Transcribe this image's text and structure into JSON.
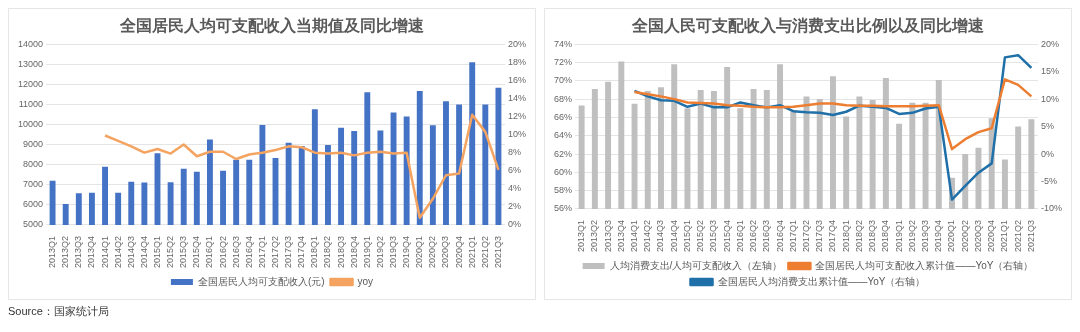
{
  "chart_data": [
    {
      "type": "bar",
      "title": "全国居民人均可支配收入当期值及同比增速",
      "categories": [
        "2013Q1",
        "2013Q2",
        "2013Q3",
        "2013Q4",
        "2014Q1",
        "2014Q2",
        "2014Q3",
        "2014Q4",
        "2015Q1",
        "2015Q2",
        "2015Q3",
        "2015Q4",
        "2016Q1",
        "2016Q2",
        "2016Q3",
        "2016Q4",
        "2017Q1",
        "2017Q2",
        "2017Q3",
        "2017Q4",
        "2018Q1",
        "2018Q2",
        "2018Q3",
        "2018Q4",
        "2019Q1",
        "2019Q2",
        "2019Q3",
        "2019Q4",
        "2020Q1",
        "2020Q2",
        "2020Q3",
        "2020Q4",
        "2021Q1",
        "2021Q2",
        "2021Q3"
      ],
      "series": [
        {
          "name": "全国居民人均可支配收入(元)",
          "color": "#4472c4",
          "values": [
            7200,
            6050,
            6580,
            6600,
            7900,
            6600,
            7150,
            7120,
            8570,
            7130,
            7800,
            7650,
            9250,
            7700,
            8250,
            8250,
            9980,
            8330,
            9090,
            8930,
            10760,
            8980,
            9840,
            9680,
            11610,
            9700,
            10600,
            10400,
            11670,
            9970,
            11160,
            11000,
            13100,
            11000,
            11830
          ]
        },
        {
          "name": "yoy",
          "type": "line",
          "axis": "y2",
          "color": "#f4a460",
          "values": [
            null,
            null,
            null,
            null,
            9.9,
            9.3,
            8.7,
            8.0,
            8.4,
            7.9,
            8.9,
            7.6,
            8.1,
            8.1,
            7.3,
            7.8,
            8.0,
            8.3,
            8.7,
            8.6,
            8.0,
            7.9,
            8.0,
            7.7,
            8.0,
            8.1,
            7.9,
            8.0,
            0.8,
            2.9,
            5.5,
            5.7,
            12.2,
            10.3,
            6.1
          ]
        }
      ],
      "ylim": [
        5000,
        14000
      ],
      "yticks": [
        5000,
        6000,
        7000,
        8000,
        9000,
        10000,
        11000,
        12000,
        13000,
        14000
      ],
      "y2lim": [
        0,
        20
      ],
      "y2ticks": [
        {
          "value": 0,
          "label": "0%"
        },
        {
          "value": 2,
          "label": "2%"
        },
        {
          "value": 4,
          "label": "4%"
        },
        {
          "value": 6,
          "label": "6%"
        },
        {
          "value": 8,
          "label": "8%"
        },
        {
          "value": 10,
          "label": "10%"
        },
        {
          "value": 12,
          "label": "12%"
        },
        {
          "value": 14,
          "label": "14%"
        },
        {
          "value": 16,
          "label": "16%"
        },
        {
          "value": 18,
          "label": "18%"
        },
        {
          "value": 20,
          "label": "20%"
        }
      ],
      "grid": "y",
      "legend": "bottom",
      "marker": "none",
      "annotations": [
        "Source：国家统计局"
      ]
    },
    {
      "type": "bar",
      "title": "全国人民可支配收入与消费支出比例以及同比增速",
      "categories": [
        "2013Q1",
        "2013Q2",
        "2013Q3",
        "2013Q4",
        "2014Q1",
        "2014Q2",
        "2014Q3",
        "2014Q4",
        "2015Q1",
        "2015Q2",
        "2015Q3",
        "2015Q4",
        "2016Q1",
        "2016Q2",
        "2016Q3",
        "2016Q4",
        "2017Q1",
        "2017Q2",
        "2017Q3",
        "2017Q4",
        "2018Q1",
        "2018Q2",
        "2018Q3",
        "2018Q4",
        "2019Q1",
        "2019Q2",
        "2019Q3",
        "2019Q4",
        "2020Q1",
        "2020Q2",
        "2020Q3",
        "2020Q4",
        "2021Q1",
        "2021Q2",
        "2021Q3"
      ],
      "series": [
        {
          "name": "人均消费支出/人均可支配收入（左轴）",
          "color": "#bfbfbf",
          "values": [
            67.3,
            69.1,
            69.9,
            72.1,
            67.5,
            68.9,
            69.3,
            71.8,
            67.0,
            69.0,
            68.9,
            71.5,
            67.0,
            69.1,
            69.0,
            71.8,
            66.8,
            68.3,
            68.0,
            70.5,
            66.1,
            68.3,
            67.9,
            70.3,
            65.3,
            67.6,
            67.6,
            70.1,
            59.4,
            62.0,
            62.7,
            65.9,
            61.4,
            65.0,
            65.8
          ]
        },
        {
          "name": "全国居民人均可支配收入累计值——YoY（右轴）",
          "type": "line",
          "axis": "y2",
          "color": "#ed7d31",
          "values": [
            null,
            null,
            null,
            null,
            11.3,
            10.9,
            10.5,
            10.0,
            9.4,
            9.3,
            9.2,
            8.9,
            8.8,
            8.6,
            8.5,
            8.5,
            8.6,
            8.9,
            9.2,
            9.2,
            8.9,
            8.8,
            8.8,
            8.7,
            8.7,
            8.7,
            8.8,
            8.9,
            0.9,
            2.7,
            4.0,
            4.7,
            13.6,
            12.6,
            10.5
          ]
        },
        {
          "name": "全国居民人均消费支出累计值——YoY（右轴）",
          "type": "line",
          "axis": "y2",
          "color": "#1f6fa8",
          "values": [
            null,
            null,
            null,
            null,
            11.5,
            10.5,
            9.8,
            9.7,
            8.6,
            9.2,
            8.5,
            8.5,
            9.4,
            8.9,
            8.5,
            8.9,
            7.8,
            7.6,
            7.5,
            7.1,
            7.7,
            8.8,
            8.6,
            8.4,
            7.3,
            7.5,
            8.3,
            8.6,
            -8.3,
            -5.8,
            -3.4,
            -1.7,
            17.6,
            18.0,
            15.7
          ]
        }
      ],
      "ylim": [
        56,
        74
      ],
      "yticks": [
        {
          "value": 56,
          "label": "56%"
        },
        {
          "value": 58,
          "label": "58%"
        },
        {
          "value": 60,
          "label": "60%"
        },
        {
          "value": 62,
          "label": "62%"
        },
        {
          "value": 64,
          "label": "64%"
        },
        {
          "value": 66,
          "label": "66%"
        },
        {
          "value": 68,
          "label": "68%"
        },
        {
          "value": 70,
          "label": "70%"
        },
        {
          "value": 72,
          "label": "72%"
        },
        {
          "value": 74,
          "label": "74%"
        }
      ],
      "y2lim": [
        -10,
        20
      ],
      "y2ticks": [
        {
          "value": -10,
          "label": "-10%"
        },
        {
          "value": -5,
          "label": "-5%"
        },
        {
          "value": 0,
          "label": "0%"
        },
        {
          "value": 5,
          "label": "5%"
        },
        {
          "value": 10,
          "label": "10%"
        },
        {
          "value": 15,
          "label": "15%"
        },
        {
          "value": 20,
          "label": "20%"
        }
      ],
      "grid": "y",
      "legend": "bottom",
      "marker": "none"
    }
  ]
}
